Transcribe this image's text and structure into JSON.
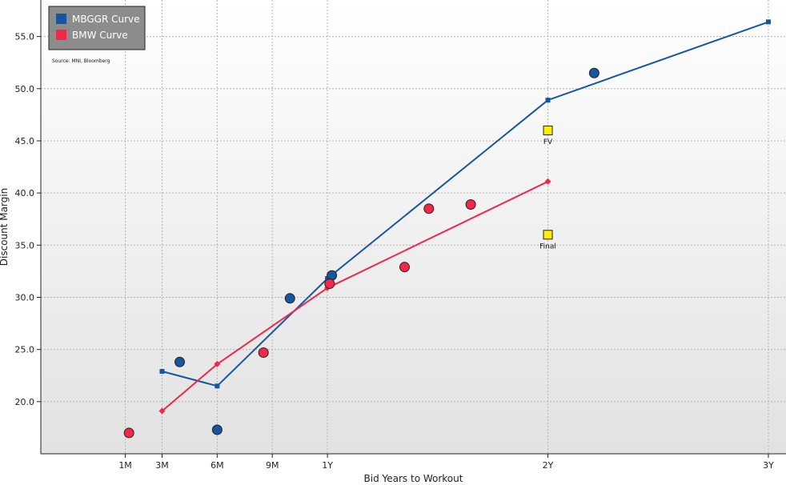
{
  "chart_data": {
    "type": "scatter",
    "title": "",
    "xlabel": "Bid Years to Workout",
    "ylabel": "Discount Margin",
    "source_note": "Source: MNI, Bloomberg",
    "grid": true,
    "legend_position": "top-left",
    "xlim": [
      -0.3,
      3.08
    ],
    "ylim": [
      15.0,
      58.5
    ],
    "y_ticks": [
      20.0,
      25.0,
      30.0,
      35.0,
      40.0,
      45.0,
      50.0,
      55.0
    ],
    "y_tick_labels": [
      "20.0",
      "25.0",
      "30.0",
      "35.0",
      "40.0",
      "45.0",
      "50.0",
      "55.0"
    ],
    "x_ticks": [
      0.0833,
      0.25,
      0.5,
      0.75,
      1.0,
      2.0,
      3.0
    ],
    "x_tick_labels": [
      "1M",
      "3M",
      "6M",
      "9M",
      "1Y",
      "2Y",
      "3Y"
    ],
    "colors": {
      "mbggr": "#1556a0",
      "bmw": "#f0284a",
      "marker_yellow": "#ffee00",
      "legend_bg": "#8c8c8c"
    },
    "series": [
      {
        "name": "MBGGR Curve",
        "kind": "curve",
        "color": "#1556a0",
        "x": [
          0.25,
          0.5,
          1.0,
          2.0,
          3.0
        ],
        "y": [
          22.9,
          21.5,
          31.8,
          48.9,
          56.4
        ]
      },
      {
        "name": "BMW Curve",
        "kind": "curve",
        "color": "#f0284a",
        "x": [
          0.25,
          0.5,
          1.0,
          2.0
        ],
        "y": [
          19.1,
          23.6,
          30.9,
          41.1
        ]
      },
      {
        "kind": "points",
        "color": "#1556a0",
        "x": [
          0.33,
          0.5,
          0.83,
          1.02,
          2.21
        ],
        "y": [
          23.8,
          17.3,
          29.9,
          32.1,
          51.5
        ]
      },
      {
        "kind": "points",
        "color": "#f0284a",
        "x": [
          0.1,
          0.71,
          1.01,
          1.35,
          1.46,
          1.65
        ],
        "y": [
          17.0,
          24.7,
          31.3,
          32.9,
          38.5,
          38.9
        ]
      }
    ],
    "annotations": [
      {
        "label": "FV",
        "x": 2.0,
        "y": 46.0
      },
      {
        "label": "Final",
        "x": 2.0,
        "y": 36.0
      }
    ]
  }
}
